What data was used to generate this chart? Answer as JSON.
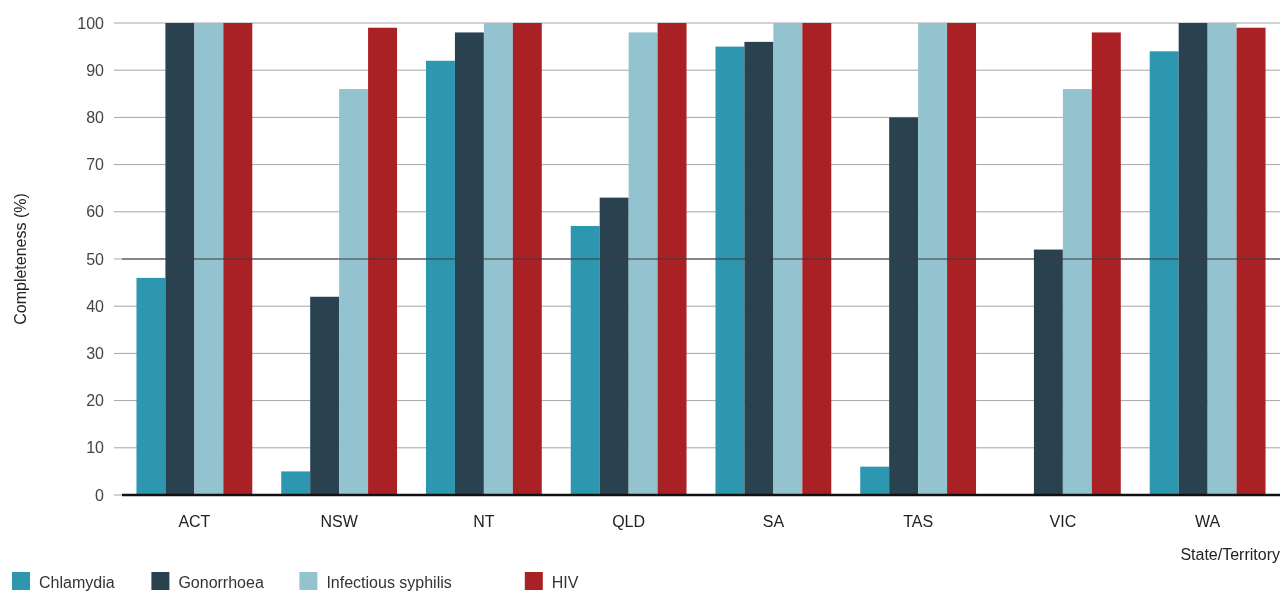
{
  "chart_data": {
    "type": "bar",
    "xlabel": "State/Territory",
    "ylabel": "Completeness (%)",
    "categories": [
      "ACT",
      "NSW",
      "NT",
      "QLD",
      "SA",
      "TAS",
      "VIC",
      "WA"
    ],
    "series": [
      {
        "name": "Chlamydia",
        "color": "#2e97b0",
        "values": [
          46,
          5,
          92,
          57,
          95,
          6,
          0,
          94
        ]
      },
      {
        "name": "Gonorrhoea",
        "color": "#2a4150",
        "values": [
          100,
          42,
          98,
          63,
          96,
          80,
          52,
          100
        ]
      },
      {
        "name": "Infectious syphilis",
        "color": "#93c3cf",
        "values": [
          100,
          86,
          100,
          98,
          100,
          100,
          86,
          100
        ]
      },
      {
        "name": "HIV",
        "color": "#a92124",
        "values": [
          100,
          99,
          100,
          100,
          100,
          100,
          98,
          99
        ]
      }
    ],
    "ylim": [
      0,
      100
    ],
    "yticks": [
      0,
      10,
      20,
      30,
      40,
      50,
      60,
      70,
      80,
      90,
      100
    ],
    "grid": "y",
    "legend": "bottom",
    "ref_lines": [
      {
        "axis": "y",
        "value": 50,
        "color": "#3a3a3a"
      }
    ]
  }
}
